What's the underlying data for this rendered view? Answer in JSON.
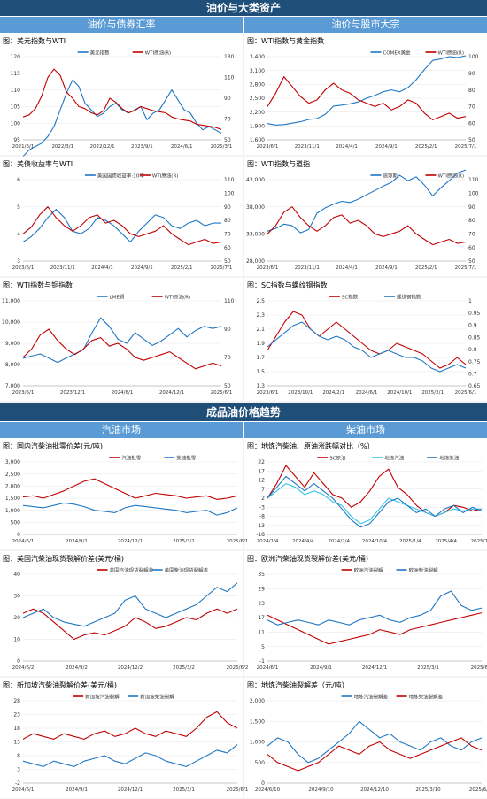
{
  "sections": [
    {
      "title": "油价与大类资产",
      "left": "油价与债券汇率",
      "right": "油价与股市大宗"
    },
    {
      "title": "成品油价格趋势",
      "left": "汽油市场",
      "right": "柴油市场"
    }
  ],
  "colors": {
    "red": "#c00000",
    "blue": "#1f77c4",
    "cyan": "#2ec4e6",
    "band": "#1f4e79",
    "subband": "#5b9bd5"
  },
  "chart_data": [
    {
      "type": "line",
      "title": "图：美元指数与WTI",
      "xticks": [
        "2021/6/1",
        "2022/3/1",
        "2022/12/1",
        "2023/9/1",
        "2024/6/1",
        "2025/3/1"
      ],
      "yleft": [
        95,
        100,
        105,
        110,
        115,
        120
      ],
      "yright": [
        50,
        70,
        90,
        110,
        130
      ],
      "series": [
        {
          "name": "美元指数",
          "axis": "left",
          "color": "#1f77c4",
          "values": [
            90,
            92,
            93,
            94,
            96,
            99,
            104,
            109,
            113,
            111,
            106,
            104,
            102,
            103,
            105,
            106,
            104,
            103,
            104,
            105,
            101,
            103,
            104,
            107,
            110,
            107,
            104,
            103,
            100,
            98,
            99,
            98,
            97
          ]
        },
        {
          "name": "WTI原油(R)",
          "axis": "right",
          "color": "#c00000",
          "values": [
            72,
            74,
            80,
            92,
            110,
            118,
            112,
            96,
            90,
            82,
            80,
            76,
            74,
            78,
            90,
            86,
            80,
            76,
            78,
            82,
            80,
            78,
            77,
            76,
            72,
            70,
            69,
            68,
            65,
            64,
            63,
            62,
            60
          ]
        }
      ]
    },
    {
      "type": "line",
      "title": "图：WTI指数与黄金指数",
      "xticks": [
        "2023/6/1",
        "2023/11/1",
        "2024/4/1",
        "2024/9/1",
        "2025/2/1",
        "2025/7/1"
      ],
      "yleft": [
        1600,
        1900,
        2200,
        2500,
        2800,
        3100,
        3400
      ],
      "yright": [
        50,
        60,
        70,
        80,
        90,
        100
      ],
      "series": [
        {
          "name": "COMEX黄金",
          "axis": "left",
          "color": "#1f77c4",
          "values": [
            1950,
            1920,
            1930,
            1960,
            1990,
            2040,
            2060,
            2150,
            2330,
            2350,
            2380,
            2420,
            2500,
            2560,
            2640,
            2680,
            2640,
            2730,
            2900,
            3120,
            3320,
            3350,
            3400,
            3380,
            3420
          ]
        },
        {
          "name": "WTI原油(R)",
          "axis": "right",
          "color": "#c00000",
          "values": [
            70,
            78,
            88,
            82,
            76,
            72,
            74,
            80,
            84,
            80,
            78,
            74,
            72,
            70,
            72,
            68,
            70,
            74,
            72,
            66,
            62,
            64,
            66,
            63,
            64
          ]
        }
      ]
    },
    {
      "type": "line",
      "title": "图：美债收益率与WTI",
      "xticks": [
        "2023/6/1",
        "2023/11/1",
        "2024/4/1",
        "2024/9/1",
        "2025/2/1",
        "2025/7/1"
      ],
      "yleft": [
        3,
        4,
        5,
        6
      ],
      "yright": [
        50,
        60,
        70,
        80,
        90,
        100,
        110
      ],
      "series": [
        {
          "name": "美国国债收益率:10年",
          "axis": "left",
          "color": "#1f77c4",
          "values": [
            3.7,
            3.9,
            4.2,
            4.6,
            4.9,
            4.6,
            4.1,
            4.0,
            4.2,
            4.6,
            4.5,
            4.3,
            4.0,
            3.7,
            4.1,
            4.4,
            4.7,
            4.6,
            4.3,
            4.2,
            4.4,
            4.5,
            4.3,
            4.4,
            4.4
          ]
        },
        {
          "name": "WTI原油(R)",
          "axis": "right",
          "color": "#c00000",
          "values": [
            70,
            75,
            84,
            90,
            82,
            76,
            72,
            76,
            82,
            84,
            78,
            80,
            76,
            70,
            68,
            70,
            72,
            76,
            70,
            66,
            62,
            64,
            66,
            63,
            64
          ]
        }
      ]
    },
    {
      "type": "line",
      "title": "图：WTI指数与道指",
      "xticks": [
        "2023/6/1",
        "2023/11/1",
        "2024/4/1",
        "2024/9/1",
        "2025/2/1",
        "2025/7/1"
      ],
      "yleft": [
        28000,
        33000,
        38000,
        43000
      ],
      "yright": [
        50,
        60,
        70,
        80,
        90,
        100,
        110
      ],
      "series": [
        {
          "name": "道琼斯",
          "axis": "left",
          "color": "#1f77c4",
          "values": [
            33500,
            34000,
            34800,
            34500,
            33200,
            33800,
            36800,
            37800,
            38500,
            39000,
            38800,
            39400,
            40200,
            41000,
            41800,
            42500,
            43800,
            42800,
            43500,
            42000,
            40000,
            41500,
            42800,
            44200,
            44800
          ]
        },
        {
          "name": "WTI原油(R)",
          "axis": "right",
          "color": "#c00000",
          "values": [
            70,
            76,
            86,
            90,
            82,
            76,
            72,
            76,
            82,
            84,
            78,
            80,
            76,
            70,
            68,
            70,
            72,
            76,
            70,
            66,
            62,
            64,
            66,
            63,
            64
          ]
        }
      ]
    },
    {
      "type": "line",
      "title": "图：WTI指数与铜指数",
      "xticks": [
        "2023/6/1",
        "2023/12/1",
        "2024/6/1",
        "2024/12/1",
        "2025/6/1"
      ],
      "yleft": [
        7000,
        8000,
        9000,
        10000,
        11000
      ],
      "yright": [
        50,
        70,
        90,
        110
      ],
      "series": [
        {
          "name": "LME铜",
          "axis": "left",
          "color": "#1f77c4",
          "values": [
            8300,
            8400,
            8500,
            8300,
            8100,
            8300,
            8500,
            8700,
            9500,
            10200,
            9800,
            9200,
            9000,
            9500,
            9200,
            8900,
            9100,
            9400,
            9700,
            9300,
            9600,
            9800,
            9700,
            9800
          ]
        },
        {
          "name": "WTI原油(R)",
          "axis": "right",
          "color": "#c00000",
          "values": [
            70,
            76,
            86,
            90,
            82,
            76,
            72,
            76,
            82,
            84,
            78,
            80,
            76,
            70,
            68,
            70,
            72,
            74,
            70,
            66,
            62,
            64,
            66,
            64
          ]
        }
      ]
    },
    {
      "type": "line",
      "title": "图：SC指数与螺纹钢指数",
      "xticks": [
        "2023/6/1",
        "2023/10/1",
        "2024/2/1",
        "2024/6/1",
        "2024/10/1",
        "2025/2/1",
        "2025/6/1"
      ],
      "yleft": [
        1.3,
        1.5,
        1.7,
        1.9,
        2.1,
        2.3,
        2.5
      ],
      "yright": [
        0.65,
        0.7,
        0.75,
        0.8,
        0.85,
        0.9,
        0.95,
        1.0
      ],
      "series": [
        {
          "name": "SC指数",
          "axis": "left",
          "color": "#c00000",
          "values": [
            1.8,
            2.0,
            2.2,
            2.35,
            2.3,
            2.1,
            2.0,
            2.1,
            2.2,
            2.1,
            2.0,
            1.9,
            1.8,
            1.75,
            1.8,
            1.9,
            1.85,
            1.8,
            1.75,
            1.65,
            1.55,
            1.6,
            1.7,
            1.6
          ]
        },
        {
          "name": "螺纹钢指数",
          "axis": "left",
          "color": "#1f77c4",
          "values": [
            1.85,
            1.95,
            2.05,
            2.15,
            2.2,
            2.1,
            2.0,
            1.95,
            2.0,
            1.95,
            1.85,
            1.8,
            1.7,
            1.75,
            1.8,
            1.75,
            1.7,
            1.7,
            1.65,
            1.55,
            1.5,
            1.55,
            1.6,
            1.55
          ]
        }
      ]
    },
    {
      "type": "line",
      "title": "图：国内汽柴油批零价差(元/吨)",
      "xticks": [
        "2024/6/1",
        "2024/9/1",
        "2024/12/1",
        "2025/3/1",
        "2025/6/1"
      ],
      "yleft": [
        0,
        500,
        1000,
        1500,
        2000,
        2500,
        3000
      ],
      "yright": [],
      "series": [
        {
          "name": "汽油批零",
          "axis": "left",
          "color": "#c00000",
          "values": [
            1550,
            1600,
            1500,
            1650,
            1800,
            2000,
            2200,
            2300,
            2100,
            1900,
            1700,
            1500,
            1600,
            1700,
            1650,
            1600,
            1500,
            1550,
            1600,
            1450,
            1500,
            1600
          ]
        },
        {
          "name": "柴油批零",
          "axis": "left",
          "color": "#1f77c4",
          "values": [
            1200,
            1150,
            1100,
            1200,
            1300,
            1250,
            1150,
            1000,
            950,
            900,
            1100,
            1200,
            1150,
            1100,
            1050,
            1000,
            900,
            950,
            1000,
            800,
            900,
            1100
          ]
        }
      ]
    },
    {
      "type": "line",
      "title": "图：地炼汽柴油、原油涨跌幅对比（%）",
      "xticks": [
        "2024/1/4",
        "2024/4/4",
        "2024/7/4",
        "2024/10/4",
        "2025/1/4",
        "2025/4/4",
        "2025/7/4"
      ],
      "yleft": [
        -18,
        -13,
        -8,
        -3,
        2,
        7,
        12,
        17,
        22
      ],
      "yright": [],
      "series": [
        {
          "name": "SC原油",
          "axis": "left",
          "color": "#c00000",
          "values": [
            2,
            10,
            20,
            14,
            8,
            16,
            10,
            4,
            2,
            -3,
            0,
            6,
            14,
            18,
            8,
            4,
            -2,
            -6,
            -8,
            -6,
            -2,
            -3,
            -5,
            -4
          ]
        },
        {
          "name": "地炼汽油",
          "axis": "left",
          "color": "#2ec4e6",
          "values": [
            2,
            6,
            10,
            8,
            4,
            6,
            4,
            0,
            -2,
            -8,
            -12,
            -10,
            -4,
            2,
            0,
            -2,
            -4,
            -6,
            -8,
            -6,
            -4,
            -5,
            -4,
            -4
          ]
        },
        {
          "name": "地炼柴油",
          "axis": "left",
          "color": "#1f77c4",
          "values": [
            2,
            8,
            14,
            10,
            6,
            10,
            6,
            2,
            -4,
            -10,
            -14,
            -12,
            -6,
            0,
            2,
            -2,
            -6,
            -4,
            -8,
            -4,
            -2,
            -6,
            -3,
            -5
          ]
        }
      ]
    },
    {
      "type": "line",
      "title": "图：美国汽柴油现货裂解价差(美元/桶)",
      "xticks": [
        "2024/6/2",
        "2024/9/2",
        "2024/12/2",
        "2025/3/2",
        "2025/6/2"
      ],
      "yleft": [
        0,
        10,
        20,
        30,
        40
      ],
      "yright": [],
      "series": [
        {
          "name": "美国汽油现货裂解差",
          "axis": "left",
          "color": "#c00000",
          "values": [
            22,
            24,
            22,
            18,
            14,
            10,
            12,
            13,
            12,
            14,
            16,
            20,
            18,
            15,
            16,
            18,
            20,
            19,
            22,
            24,
            22,
            24
          ]
        },
        {
          "name": "美国柴油现货裂解差",
          "axis": "left",
          "color": "#1f77c4",
          "values": [
            20,
            22,
            24,
            20,
            18,
            17,
            16,
            18,
            20,
            22,
            28,
            30,
            24,
            22,
            20,
            22,
            24,
            26,
            30,
            34,
            32,
            36
          ]
        }
      ]
    },
    {
      "type": "line",
      "title": "图：欧洲汽柴油现货裂解价差(美元/桶)",
      "xticks": [
        "2024/6/1",
        "2024/9/1",
        "2024/12/1",
        "2025/3/1",
        "2025/6/1"
      ],
      "yleft": [
        -1,
        5,
        11,
        17,
        23,
        29,
        35
      ],
      "yright": [],
      "series": [
        {
          "name": "欧洲汽油裂解",
          "axis": "left",
          "color": "#c00000",
          "values": [
            18,
            16,
            14,
            12,
            10,
            8,
            6,
            7,
            8,
            9,
            10,
            12,
            11,
            10,
            12,
            13,
            14,
            15,
            16,
            17,
            18,
            19
          ]
        },
        {
          "name": "欧洲柴油裂解",
          "axis": "left",
          "color": "#1f77c4",
          "values": [
            16,
            14,
            15,
            16,
            15,
            14,
            16,
            15,
            14,
            16,
            17,
            18,
            16,
            15,
            17,
            18,
            20,
            26,
            28,
            22,
            20,
            21
          ]
        }
      ]
    },
    {
      "type": "line",
      "title": "图：新加坡汽柴油裂解价差(美元/桶)",
      "xticks": [
        "2024/6/1",
        "2024/9/1",
        "2024/12/1",
        "2025/3/1",
        "2025/6/1"
      ],
      "yleft": [
        -2,
        3,
        8,
        13,
        18,
        23,
        28
      ],
      "yright": [],
      "series": [
        {
          "name": "新加坡汽油裂解",
          "axis": "left",
          "color": "#c00000",
          "values": [
            14,
            16,
            15,
            14,
            16,
            15,
            14,
            16,
            17,
            15,
            16,
            18,
            16,
            15,
            17,
            16,
            15,
            18,
            22,
            24,
            20,
            18
          ]
        },
        {
          "name": "新加坡柴油裂解",
          "axis": "left",
          "color": "#1f77c4",
          "values": [
            6,
            5,
            4,
            6,
            5,
            4,
            6,
            7,
            8,
            6,
            5,
            7,
            9,
            8,
            6,
            5,
            4,
            6,
            8,
            10,
            9,
            12
          ]
        }
      ]
    },
    {
      "type": "line",
      "title": "图：地炼汽柴油裂解差（元/吨）",
      "xticks": [
        "2024/6/10",
        "2024/9/10",
        "2024/12/10",
        "2025/3/10",
        "2025/6/10"
      ],
      "yleft": [
        0,
        500,
        1000,
        1500,
        2000
      ],
      "yright": [],
      "series": [
        {
          "name": "地炼汽油裂解差",
          "axis": "left",
          "color": "#1f77c4",
          "values": [
            900,
            1100,
            1000,
            700,
            500,
            600,
            800,
            1000,
            1200,
            1500,
            1300,
            1100,
            1200,
            1000,
            900,
            800,
            1000,
            1100,
            900,
            800,
            1000,
            1100
          ]
        },
        {
          "name": "地炼柴油裂解差",
          "axis": "left",
          "color": "#c00000",
          "values": [
            700,
            500,
            400,
            300,
            400,
            500,
            700,
            900,
            800,
            700,
            900,
            1000,
            800,
            700,
            600,
            700,
            800,
            900,
            1000,
            1100,
            900,
            800
          ]
        }
      ]
    }
  ]
}
